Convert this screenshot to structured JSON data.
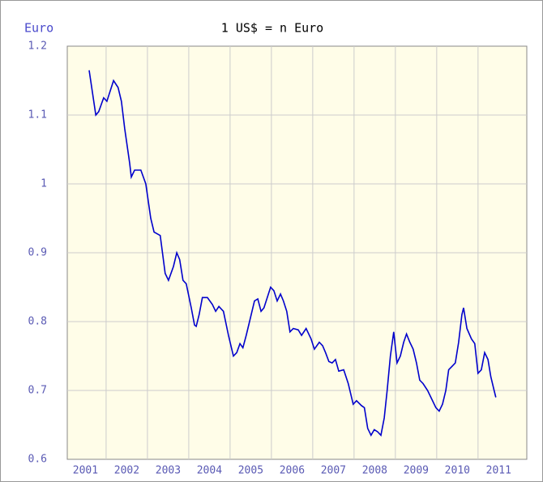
{
  "chart_data": {
    "type": "line",
    "title": "1 US$ = n Euro",
    "y_label": "Euro",
    "x": [
      2001.59,
      2001.75,
      2001.82,
      2001.94,
      2002.02,
      2002.18,
      2002.29,
      2002.37,
      2002.45,
      2002.57,
      2002.61,
      2002.69,
      2002.84,
      2002.96,
      2003.08,
      2003.16,
      2003.31,
      2003.43,
      2003.51,
      2003.63,
      2003.71,
      2003.78,
      2003.86,
      2003.94,
      2004.06,
      2004.14,
      2004.18,
      2004.25,
      2004.33,
      2004.45,
      2004.57,
      2004.65,
      2004.73,
      2004.84,
      2004.96,
      2005.08,
      2005.16,
      2005.24,
      2005.31,
      2005.39,
      2005.47,
      2005.59,
      2005.67,
      2005.75,
      2005.82,
      2005.9,
      2005.98,
      2006.06,
      2006.14,
      2006.22,
      2006.29,
      2006.37,
      2006.45,
      2006.53,
      2006.65,
      2006.73,
      2006.84,
      2006.96,
      2007.04,
      2007.16,
      2007.24,
      2007.31,
      2007.39,
      2007.47,
      2007.55,
      2007.63,
      2007.75,
      2007.86,
      2007.98,
      2008.06,
      2008.18,
      2008.25,
      2008.33,
      2008.41,
      2008.49,
      2008.57,
      2008.65,
      2008.73,
      2008.8,
      2008.88,
      2008.96,
      2009.04,
      2009.12,
      2009.2,
      2009.27,
      2009.35,
      2009.43,
      2009.51,
      2009.59,
      2009.67,
      2009.78,
      2009.86,
      2009.98,
      2010.06,
      2010.14,
      2010.22,
      2010.29,
      2010.37,
      2010.45,
      2010.53,
      2010.61,
      2010.65,
      2010.73,
      2010.84,
      2010.92,
      2011.0,
      2011.08,
      2011.16,
      2011.24,
      2011.31,
      2011.39,
      2011.43
    ],
    "series": [
      {
        "name": "1 US$ = n Euro",
        "color": "#0000cc",
        "values": [
          1.165,
          1.1,
          1.105,
          1.125,
          1.12,
          1.15,
          1.14,
          1.12,
          1.08,
          1.03,
          1.01,
          1.02,
          1.02,
          1.0,
          0.95,
          0.93,
          0.925,
          0.87,
          0.86,
          0.88,
          0.9,
          0.89,
          0.86,
          0.855,
          0.82,
          0.795,
          0.793,
          0.81,
          0.835,
          0.835,
          0.825,
          0.815,
          0.822,
          0.815,
          0.78,
          0.75,
          0.755,
          0.768,
          0.762,
          0.78,
          0.8,
          0.83,
          0.833,
          0.815,
          0.82,
          0.835,
          0.85,
          0.845,
          0.83,
          0.84,
          0.83,
          0.815,
          0.785,
          0.79,
          0.788,
          0.78,
          0.79,
          0.775,
          0.76,
          0.77,
          0.765,
          0.755,
          0.742,
          0.74,
          0.745,
          0.728,
          0.73,
          0.71,
          0.68,
          0.685,
          0.678,
          0.675,
          0.645,
          0.635,
          0.643,
          0.64,
          0.635,
          0.66,
          0.7,
          0.75,
          0.785,
          0.74,
          0.75,
          0.77,
          0.782,
          0.77,
          0.76,
          0.74,
          0.715,
          0.71,
          0.7,
          0.69,
          0.675,
          0.67,
          0.68,
          0.7,
          0.73,
          0.735,
          0.74,
          0.77,
          0.81,
          0.82,
          0.79,
          0.775,
          0.768,
          0.725,
          0.73,
          0.755,
          0.745,
          0.72,
          0.7,
          0.69
        ]
      }
    ],
    "xlim": [
      2001.06,
      2012.18
    ],
    "xticks": [
      2001,
      2002,
      2003,
      2004,
      2005,
      2006,
      2007,
      2008,
      2009,
      2010,
      2011
    ],
    "ylim": [
      0.6,
      1.2
    ],
    "yticks": [
      0.6,
      0.7,
      0.8,
      0.9,
      1,
      1.1,
      1.2
    ],
    "grid": true
  }
}
